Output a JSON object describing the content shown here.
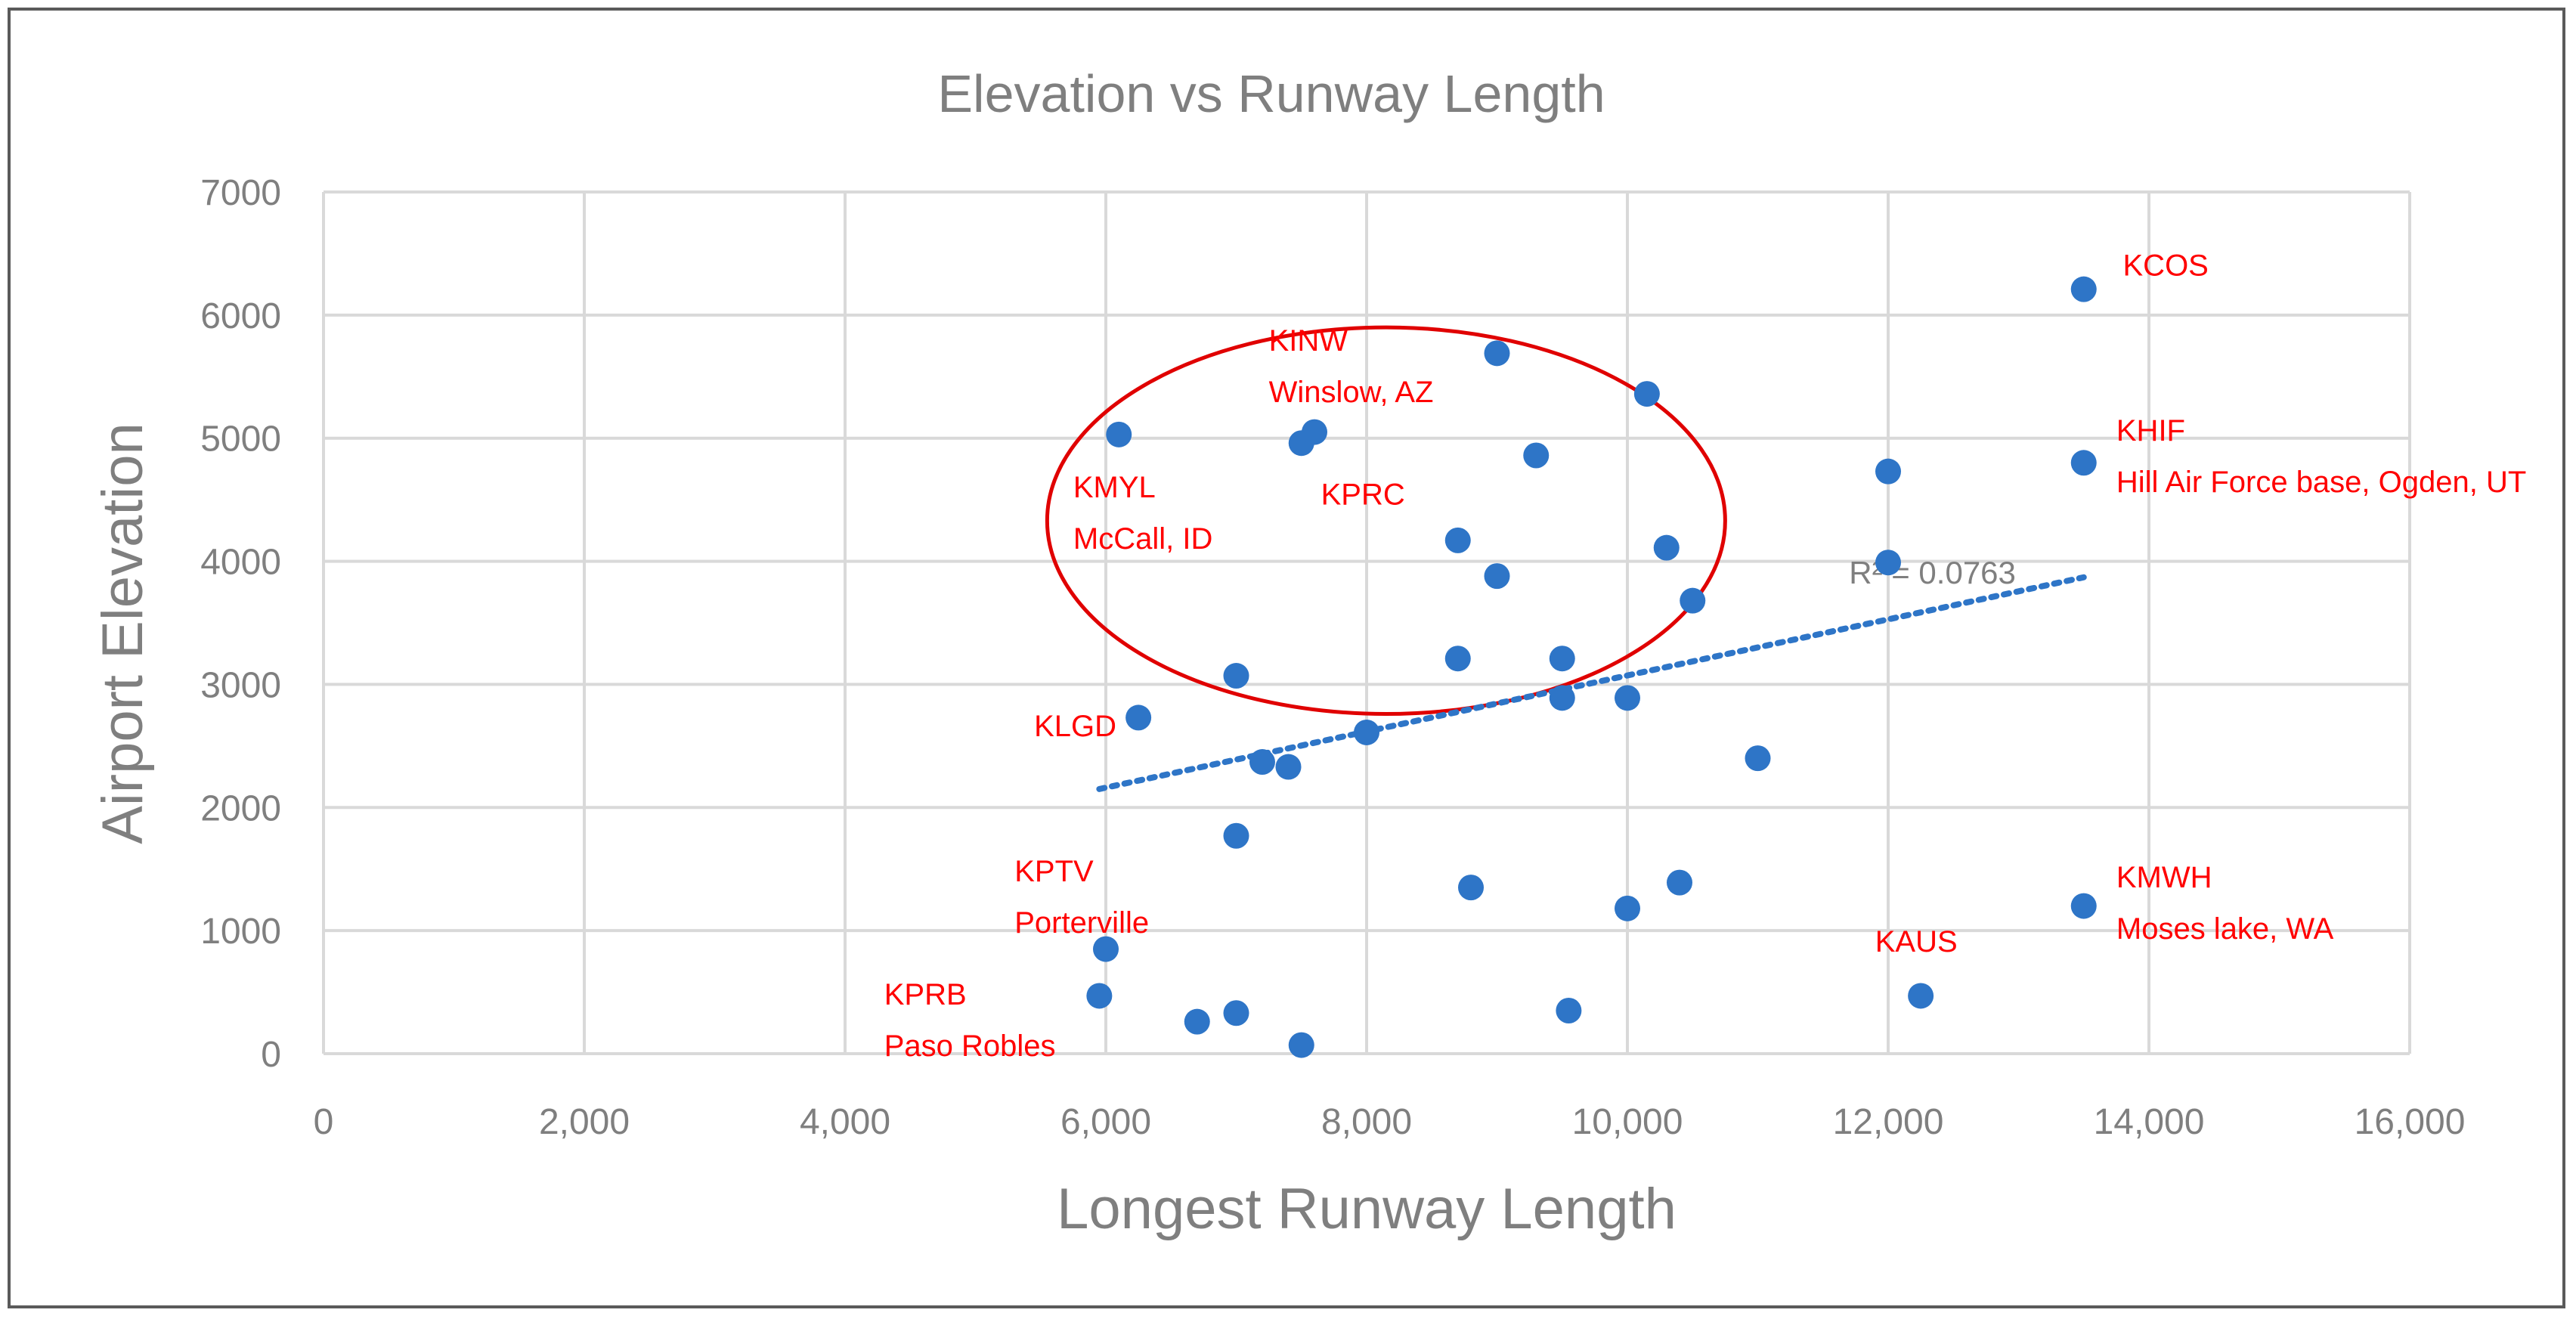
{
  "chart_data": {
    "type": "scatter",
    "title": "Elevation vs Runway Length",
    "xlabel": "Longest Runway Length",
    "ylabel": "Airport Elevation",
    "xlim": [
      0,
      16000
    ],
    "ylim": [
      0,
      7000
    ],
    "x_ticks": [
      0,
      2000,
      4000,
      6000,
      8000,
      10000,
      12000,
      14000,
      16000
    ],
    "x_tick_labels": [
      "0",
      "2,000",
      "4,000",
      "6,000",
      "8,000",
      "10,000",
      "12,000",
      "14,000",
      "16,000"
    ],
    "y_ticks": [
      0,
      1000,
      2000,
      3000,
      4000,
      5000,
      6000,
      7000
    ],
    "y_tick_labels": [
      "0",
      "1000",
      "2000",
      "3000",
      "4000",
      "5000",
      "6000",
      "7000"
    ],
    "grid": true,
    "color": "#2e75c7",
    "annotation_color": "#ff0000",
    "points": [
      {
        "x": 6100,
        "y": 5030
      },
      {
        "x": 7500,
        "y": 4960
      },
      {
        "x": 7600,
        "y": 5050
      },
      {
        "x": 9000,
        "y": 5690
      },
      {
        "x": 10150,
        "y": 5360
      },
      {
        "x": 9300,
        "y": 4860
      },
      {
        "x": 8700,
        "y": 4170
      },
      {
        "x": 9000,
        "y": 3880
      },
      {
        "x": 10300,
        "y": 4110
      },
      {
        "x": 10500,
        "y": 3680
      },
      {
        "x": 12000,
        "y": 4730
      },
      {
        "x": 12000,
        "y": 3990
      },
      {
        "x": 13500,
        "y": 6210
      },
      {
        "x": 13500,
        "y": 4800
      },
      {
        "x": 7000,
        "y": 3070
      },
      {
        "x": 8700,
        "y": 3210
      },
      {
        "x": 9500,
        "y": 3210
      },
      {
        "x": 9500,
        "y": 2890
      },
      {
        "x": 10000,
        "y": 2890
      },
      {
        "x": 6250,
        "y": 2730
      },
      {
        "x": 8000,
        "y": 2610
      },
      {
        "x": 7200,
        "y": 2370
      },
      {
        "x": 7400,
        "y": 2330
      },
      {
        "x": 11000,
        "y": 2400
      },
      {
        "x": 7000,
        "y": 1770
      },
      {
        "x": 8800,
        "y": 1350
      },
      {
        "x": 10000,
        "y": 1180
      },
      {
        "x": 10400,
        "y": 1390
      },
      {
        "x": 13500,
        "y": 1200
      },
      {
        "x": 6000,
        "y": 850
      },
      {
        "x": 5950,
        "y": 470
      },
      {
        "x": 6700,
        "y": 260
      },
      {
        "x": 7000,
        "y": 330
      },
      {
        "x": 7500,
        "y": 70
      },
      {
        "x": 9550,
        "y": 350
      },
      {
        "x": 12250,
        "y": 470
      }
    ],
    "trendline": {
      "type": "linear",
      "x_start": 5950,
      "y_start": 2150,
      "x_end": 13500,
      "y_end": 3870,
      "r_squared_label": "R² = 0.0763"
    },
    "annotations": [
      {
        "lines": [
          "KCOS"
        ],
        "x": 13800,
        "y": 6320
      },
      {
        "lines": [
          "KINW",
          "Winslow, AZ"
        ],
        "x": 7250,
        "y": 5710
      },
      {
        "lines": [
          "KHIF",
          "Hill Air Force base, Ogden, UT"
        ],
        "x": 13750,
        "y": 4980
      },
      {
        "lines": [
          "KMYL",
          "McCall, ID"
        ],
        "x": 5750,
        "y": 4520
      },
      {
        "lines": [
          "KPRC"
        ],
        "x": 7650,
        "y": 4460
      },
      {
        "lines": [
          "KLGD"
        ],
        "x": 5450,
        "y": 2580
      },
      {
        "lines": [
          "KPTV",
          "Porterville"
        ],
        "x": 5300,
        "y": 1400
      },
      {
        "lines": [
          "KAUS"
        ],
        "x": 11900,
        "y": 830
      },
      {
        "lines": [
          "KMWH",
          "Moses lake, WA"
        ],
        "x": 13750,
        "y": 1350
      },
      {
        "lines": [
          "KPRB",
          "Paso Robles"
        ],
        "x": 4300,
        "y": 400
      }
    ],
    "highlight_ellipse": {
      "cx": 8150,
      "cy": 4330,
      "rx": 2600,
      "ry": 1570
    }
  }
}
